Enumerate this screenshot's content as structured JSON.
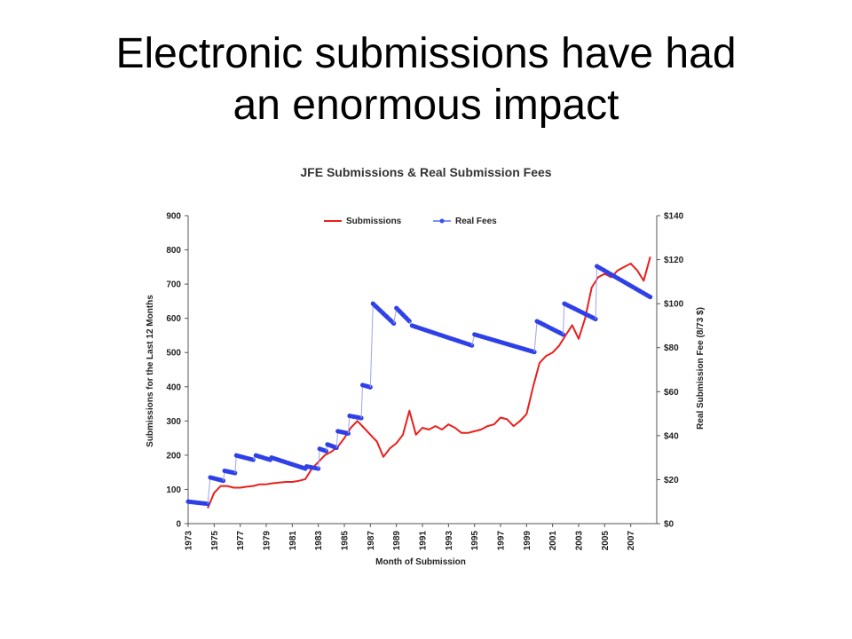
{
  "slide": {
    "title_line1": "Electronic submissions have had",
    "title_line2": "an enormous impact"
  },
  "chart_data": {
    "type": "line",
    "title": "JFE Submissions & Real Submission Fees",
    "xlabel": "Month of Submission",
    "ylabel_left": "Submissions for the Last 12 Months",
    "ylabel_right": "Real Submission Fee (8/73 $)",
    "xlim": [
      1973,
      2009
    ],
    "ylim_left": [
      0,
      900
    ],
    "ylim_right": [
      0,
      140
    ],
    "x_ticks": [
      "1973",
      "1975",
      "1977",
      "1979",
      "1981",
      "1983",
      "1985",
      "1987",
      "1989",
      "1991",
      "1993",
      "1995",
      "1997",
      "1999",
      "2001",
      "2003",
      "2005",
      "2007"
    ],
    "y_ticks_left": [
      "0",
      "100",
      "200",
      "300",
      "400",
      "500",
      "600",
      "700",
      "800",
      "900"
    ],
    "y_ticks_right": [
      "$0",
      "$20",
      "$40",
      "$60",
      "$80",
      "$100",
      "$120",
      "$140"
    ],
    "legend_position": "top",
    "series": [
      {
        "name": "Submissions",
        "axis": "left",
        "color": "#e8201c",
        "x": [
          1974.5,
          1975,
          1975.5,
          1976,
          1976.5,
          1977,
          1977.5,
          1978,
          1978.5,
          1979,
          1979.5,
          1980,
          1980.5,
          1981,
          1981.5,
          1982,
          1982.5,
          1983,
          1983.5,
          1984,
          1984.5,
          1985,
          1985.5,
          1986,
          1986.5,
          1987,
          1987.5,
          1988,
          1988.5,
          1989,
          1989.5,
          1990,
          1990.5,
          1991,
          1991.5,
          1992,
          1992.5,
          1993,
          1993.5,
          1994,
          1994.5,
          1995,
          1995.5,
          1996,
          1996.5,
          1997,
          1997.5,
          1998,
          1998.5,
          1999,
          1999.5,
          2000,
          2000.5,
          2001,
          2001.5,
          2002,
          2002.5,
          2003,
          2003.5,
          2004,
          2004.5,
          2005,
          2005.5,
          2006,
          2006.5,
          2007,
          2007.5,
          2008,
          2008.5
        ],
        "values": [
          45,
          90,
          110,
          110,
          105,
          105,
          108,
          110,
          115,
          115,
          118,
          120,
          122,
          122,
          125,
          130,
          160,
          180,
          200,
          210,
          225,
          250,
          280,
          300,
          280,
          260,
          240,
          195,
          220,
          235,
          260,
          330,
          260,
          280,
          275,
          285,
          275,
          290,
          280,
          265,
          265,
          270,
          275,
          285,
          290,
          310,
          305,
          285,
          300,
          320,
          400,
          470,
          490,
          500,
          520,
          550,
          580,
          540,
          600,
          690,
          720,
          730,
          720,
          740,
          750,
          760,
          740,
          710,
          780
        ]
      },
      {
        "name": "Real Fees",
        "axis": "right",
        "color": "#3a4ff0",
        "segments": [
          {
            "x": [
              1973,
              1974.5
            ],
            "values": [
              10,
              9
            ]
          },
          {
            "x": [
              1974.7,
              1975.7
            ],
            "values": [
              21,
              19.5
            ]
          },
          {
            "x": [
              1975.8,
              1976.6
            ],
            "values": [
              24,
              23
            ]
          },
          {
            "x": [
              1976.7,
              1978
            ],
            "values": [
              31,
              29
            ]
          },
          {
            "x": [
              1978.2,
              1979.3
            ],
            "values": [
              31,
              29
            ]
          },
          {
            "x": [
              1979.4,
              1982
            ],
            "values": [
              30,
              25
            ]
          },
          {
            "x": [
              1982.1,
              1983
            ],
            "values": [
              26,
              25
            ]
          },
          {
            "x": [
              1983.1,
              1983.6
            ],
            "values": [
              34,
              33
            ]
          },
          {
            "x": [
              1983.7,
              1984.4
            ],
            "values": [
              36,
              34.5
            ]
          },
          {
            "x": [
              1984.5,
              1985.3
            ],
            "values": [
              42,
              41
            ]
          },
          {
            "x": [
              1985.4,
              1986.3
            ],
            "values": [
              49,
              48
            ]
          },
          {
            "x": [
              1986.4,
              1987
            ],
            "values": [
              63,
              62
            ]
          },
          {
            "x": [
              1987.2,
              1988.8
            ],
            "values": [
              100,
              91
            ]
          },
          {
            "x": [
              1989,
              1990
            ],
            "values": [
              98,
              92
            ]
          },
          {
            "x": [
              1990.2,
              1994.8
            ],
            "values": [
              90,
              81
            ]
          },
          {
            "x": [
              1995,
              1999.6
            ],
            "values": [
              86,
              78
            ]
          },
          {
            "x": [
              1999.8,
              2001.8
            ],
            "values": [
              92,
              86
            ]
          },
          {
            "x": [
              2001.9,
              2004.3
            ],
            "values": [
              100,
              93
            ]
          },
          {
            "x": [
              2004.4,
              2008.5
            ],
            "values": [
              117,
              103
            ]
          }
        ]
      }
    ]
  }
}
